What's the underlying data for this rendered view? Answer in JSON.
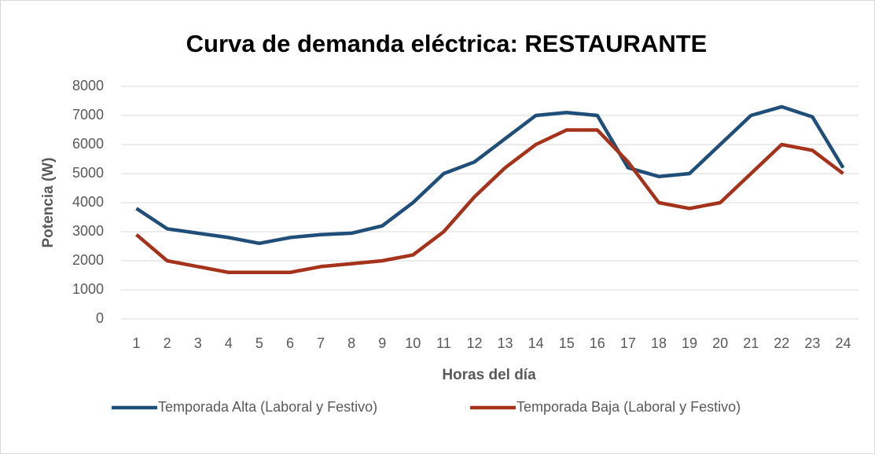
{
  "chart_data": {
    "type": "line",
    "title": "Curva de demanda eléctrica: RESTAURANTE",
    "x_label": "Horas del día",
    "y_label": "Potencia (W)",
    "categories": [
      1,
      2,
      3,
      4,
      5,
      6,
      7,
      8,
      9,
      10,
      11,
      12,
      13,
      14,
      15,
      16,
      17,
      18,
      19,
      20,
      21,
      22,
      23,
      24
    ],
    "series": [
      {
        "name": "Temporada Alta (Laboral y Festivo)",
        "color": "#1f4e79",
        "values": [
          3800,
          3100,
          2950,
          2800,
          2600,
          2800,
          2900,
          2950,
          3200,
          4000,
          5000,
          5400,
          6200,
          7000,
          7100,
          7000,
          5200,
          4900,
          5000,
          6000,
          7000,
          7300,
          6950,
          5200
        ]
      },
      {
        "name": "Temporada Baja (Laboral y Festivo)",
        "color": "#a5321a",
        "values": [
          2900,
          2000,
          1800,
          1600,
          1600,
          1600,
          1800,
          1900,
          2000,
          2200,
          3000,
          4200,
          5200,
          6000,
          6500,
          6500,
          5400,
          4000,
          3800,
          4000,
          5000,
          6000,
          5800,
          5000
        ]
      }
    ],
    "ylim": [
      0,
      8000
    ],
    "yticks": [
      0,
      1000,
      2000,
      3000,
      4000,
      5000,
      6000,
      7000,
      8000
    ],
    "grid": true,
    "legend": "bottom"
  }
}
